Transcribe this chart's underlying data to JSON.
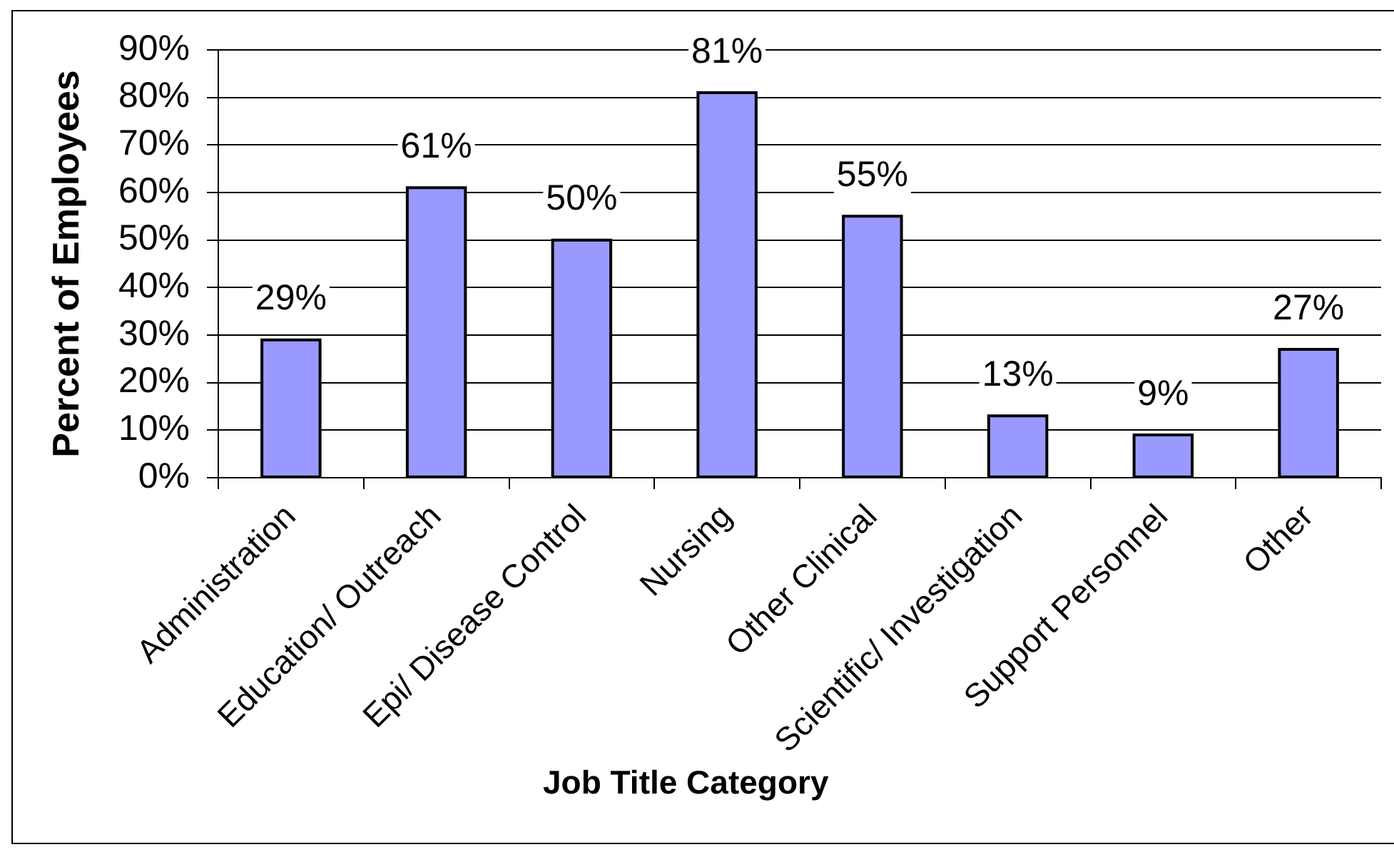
{
  "chart_data": {
    "type": "bar",
    "xlabel": "Job Title Category",
    "ylabel": "Percent of Employees",
    "categories": [
      "Administration",
      "Education/ Outreach",
      "Epi/ Disease Control",
      "Nursing",
      "Other Clinical",
      "Scientific/ Investigation",
      "Support Personnel",
      "Other"
    ],
    "values": [
      29,
      61,
      50,
      81,
      55,
      13,
      9,
      27
    ],
    "color": "#9999ff",
    "value_labels": [
      "29%",
      "61%",
      "50%",
      "81%",
      "55%",
      "13%",
      "9%",
      "27%"
    ],
    "ylim": [
      0,
      90
    ],
    "yticks": [
      {
        "value": 0,
        "label": "0%"
      },
      {
        "value": 10,
        "label": "10%"
      },
      {
        "value": 20,
        "label": "20%"
      },
      {
        "value": 30,
        "label": "30%"
      },
      {
        "value": 40,
        "label": "40%"
      },
      {
        "value": 50,
        "label": "50%"
      },
      {
        "value": 60,
        "label": "60%"
      },
      {
        "value": 70,
        "label": "70%"
      },
      {
        "value": 80,
        "label": "80%"
      },
      {
        "value": 90,
        "label": "90%"
      }
    ],
    "grid": "y"
  }
}
